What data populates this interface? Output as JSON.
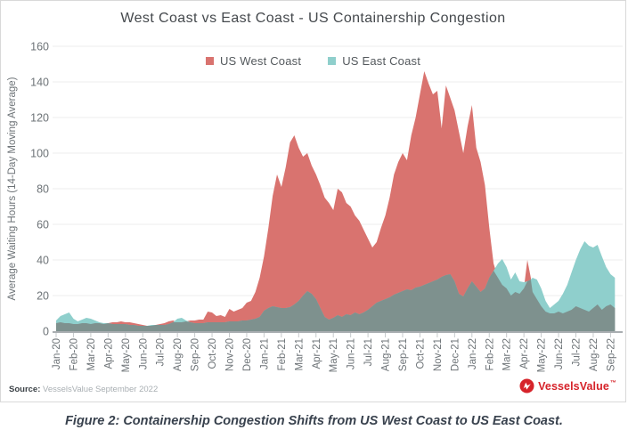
{
  "title": "West Coast vs East Coast - US Containership Congestion",
  "legend": [
    {
      "label": "US West Coast",
      "color": "#d9736f"
    },
    {
      "label": "US East Coast",
      "color": "#8fcfcc"
    }
  ],
  "y_axis": {
    "title": "Average Waiting Hours (14-Day Moving Average)",
    "ticks": [
      0,
      20,
      40,
      60,
      80,
      100,
      120,
      140,
      160
    ]
  },
  "x_axis": {
    "labels": [
      "Jan-20",
      "Feb-20",
      "Mar-20",
      "Apr-20",
      "May-20",
      "Jun-20",
      "Jul-20",
      "Aug-20",
      "Sep-20",
      "Oct-20",
      "Nov-20",
      "Dec-20",
      "Jan-21",
      "Feb-21",
      "Mar-21",
      "Apr-21",
      "May-21",
      "Jun-21",
      "Jul-21",
      "Aug-21",
      "Sep-21",
      "Oct-21",
      "Nov-21",
      "Dec-21",
      "Jan-22",
      "Feb-22",
      "Mar-22",
      "Apr-22",
      "May-22",
      "Jun-22",
      "Jul-22",
      "Aug-22",
      "Sep-22"
    ]
  },
  "source": {
    "label": "Source:",
    "text": "VesselsValue September 2022"
  },
  "logo": {
    "text": "VesselsValue",
    "tm": "™"
  },
  "caption": "Figure 2: Containership Congestion Shifts from US West Coast to US East Coast.",
  "chart_data": {
    "type": "area",
    "title": "West Coast vs East Coast - US Containership Congestion",
    "xlabel": "",
    "ylabel": "Average Waiting Hours (14-Day Moving Average)",
    "ylim": [
      0,
      160
    ],
    "grid": true,
    "legend_position": "top",
    "x_unit": "months since Jan-2020 tick (ticks at month starts, Jan-20=0 ... Sep-22=32)",
    "x_tick_labels": [
      "Jan-20",
      "Feb-20",
      "Mar-20",
      "Apr-20",
      "May-20",
      "Jun-20",
      "Jul-20",
      "Aug-20",
      "Sep-20",
      "Oct-20",
      "Nov-20",
      "Dec-20",
      "Jan-21",
      "Feb-21",
      "Mar-21",
      "Apr-21",
      "May-21",
      "Jun-21",
      "Jul-21",
      "Aug-21",
      "Sep-21",
      "Oct-21",
      "Nov-21",
      "Dec-21",
      "Jan-22",
      "Feb-22",
      "Mar-22",
      "Apr-22",
      "May-22",
      "Jun-22",
      "Jul-22",
      "Aug-22",
      "Sep-22"
    ],
    "overlap_color": "#7e918e",
    "x": [
      0,
      0.25,
      0.5,
      0.75,
      1,
      1.25,
      1.5,
      1.75,
      2,
      2.25,
      2.5,
      2.75,
      3,
      3.25,
      3.5,
      3.75,
      4,
      4.25,
      4.5,
      4.75,
      5,
      5.25,
      5.5,
      5.75,
      6,
      6.25,
      6.5,
      6.75,
      7,
      7.25,
      7.5,
      7.75,
      8,
      8.25,
      8.5,
      8.75,
      9,
      9.25,
      9.5,
      9.75,
      10,
      10.25,
      10.5,
      10.75,
      11,
      11.25,
      11.5,
      11.75,
      12,
      12.25,
      12.5,
      12.75,
      13,
      13.25,
      13.5,
      13.75,
      14,
      14.25,
      14.5,
      14.75,
      15,
      15.25,
      15.5,
      15.75,
      16,
      16.25,
      16.5,
      16.75,
      17,
      17.25,
      17.5,
      17.75,
      18,
      18.25,
      18.5,
      18.75,
      19,
      19.25,
      19.5,
      19.75,
      20,
      20.25,
      20.5,
      20.75,
      21,
      21.25,
      21.5,
      21.75,
      22,
      22.25,
      22.5,
      22.75,
      23,
      23.25,
      23.5,
      23.75,
      24,
      24.25,
      24.5,
      24.75,
      25,
      25.25,
      25.5,
      25.75,
      26,
      26.25,
      26.5,
      26.75,
      27,
      27.2,
      27.4,
      27.5,
      27.75,
      28,
      28.25,
      28.5,
      28.75,
      29,
      29.25,
      29.5,
      29.75,
      30,
      30.25,
      30.5,
      30.75,
      31,
      31.25,
      31.5,
      31.75,
      32,
      32.25
    ],
    "series": [
      {
        "name": "US West Coast",
        "color": "#d9736f",
        "values": [
          4.5,
          5,
          4.5,
          4.5,
          4,
          4,
          4.5,
          4.5,
          4,
          4.5,
          4.5,
          4,
          4.5,
          5,
          5,
          5.5,
          5,
          5,
          4.5,
          4,
          3.5,
          3,
          3,
          3.5,
          4,
          4.5,
          5.5,
          6,
          5,
          5,
          5.5,
          6,
          6,
          6.5,
          6.5,
          11,
          10.5,
          8.5,
          9,
          8,
          12.5,
          11,
          12,
          13,
          16,
          17,
          22,
          30,
          42,
          58,
          76,
          88,
          81,
          92,
          106,
          110,
          103,
          98,
          100,
          93,
          88,
          82,
          75,
          72,
          68,
          80,
          78,
          72,
          70,
          65,
          62,
          57,
          52,
          47,
          50,
          58,
          65,
          75,
          88,
          95,
          100,
          96,
          110,
          120,
          133,
          146,
          139,
          133,
          135,
          114,
          138,
          131,
          124,
          112,
          100,
          115,
          127,
          103,
          95,
          82,
          58,
          38,
          30,
          26,
          24,
          20,
          22,
          21,
          24,
          40,
          30,
          22,
          18,
          14,
          11,
          10,
          10,
          11,
          10,
          11,
          12,
          14,
          13,
          12,
          11,
          13,
          15,
          12,
          14,
          15,
          13
        ]
      },
      {
        "name": "US East Coast",
        "color": "#8fcfcc",
        "values": [
          6,
          8.5,
          9.5,
          10.5,
          7,
          5.5,
          6.5,
          7.5,
          7,
          6,
          5,
          4.5,
          4.5,
          4,
          4,
          4,
          4,
          3.5,
          3.5,
          3,
          3,
          3,
          3.5,
          3.5,
          3.5,
          3.5,
          4,
          5,
          7,
          7.5,
          6,
          5,
          4.5,
          4.5,
          4.5,
          5,
          5,
          5,
          5,
          5,
          5.5,
          5.5,
          5.5,
          6,
          6,
          6.5,
          7,
          8,
          11.5,
          13,
          14,
          13.5,
          13,
          13,
          13.5,
          15,
          17,
          20,
          22.5,
          21,
          18,
          13,
          8,
          6.5,
          7.5,
          9,
          8,
          9.5,
          9,
          10.5,
          9.5,
          10.5,
          12,
          14,
          16,
          17,
          18,
          19,
          20.5,
          21.5,
          22.5,
          23.5,
          23,
          24.5,
          25,
          26,
          27,
          28,
          29,
          30.5,
          31.5,
          32,
          28,
          21,
          19.5,
          24,
          28,
          25,
          22,
          24,
          30,
          34,
          38,
          40.5,
          36,
          29,
          33,
          28,
          27.5,
          28,
          29,
          30,
          29,
          24,
          17,
          13,
          15,
          17,
          21,
          26,
          33,
          40,
          46,
          50.5,
          48,
          47,
          48.5,
          42,
          36,
          32,
          30
        ]
      }
    ]
  }
}
